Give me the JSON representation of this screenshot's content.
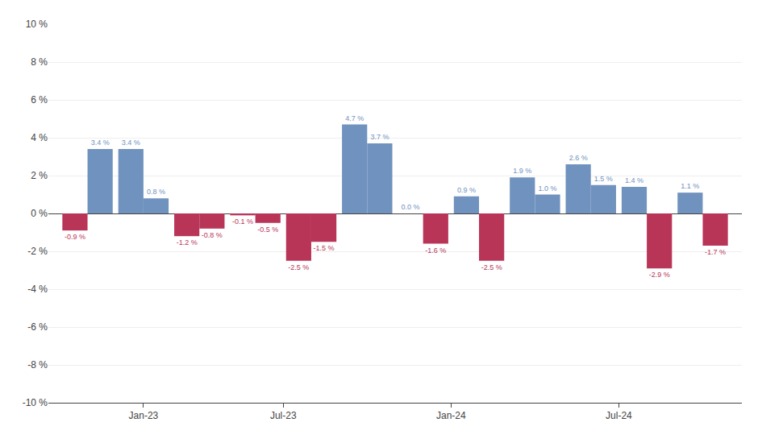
{
  "chart_data": {
    "type": "bar",
    "x": [
      0,
      1,
      2,
      3,
      4,
      5,
      6,
      7,
      8,
      9,
      10,
      11
    ],
    "xlim": [
      -0.7,
      11.7
    ],
    "xticks": [
      {
        "value": 1.0,
        "label": "Jan-23"
      },
      {
        "value": 3.5,
        "label": "Jul-23"
      },
      {
        "value": 6.5,
        "label": "Jan-24"
      },
      {
        "value": 9.5,
        "label": "Jul-24"
      }
    ],
    "ylim": [
      -10,
      10
    ],
    "yticks": [
      {
        "value": -10,
        "label": "-10 %"
      },
      {
        "value": -8,
        "label": "-8 %"
      },
      {
        "value": -6,
        "label": "-6 %"
      },
      {
        "value": -4,
        "label": "-4 %"
      },
      {
        "value": -2,
        "label": "-2 %"
      },
      {
        "value": 0,
        "label": "0 %"
      },
      {
        "value": 2,
        "label": "2 %"
      },
      {
        "value": 4,
        "label": "4 %"
      },
      {
        "value": 6,
        "label": "6 %"
      },
      {
        "value": 8,
        "label": "8 %"
      },
      {
        "value": 10,
        "label": "10 %"
      }
    ],
    "grid": true,
    "data_labels": true,
    "series": [
      {
        "values": [
          -0.9,
          3.4,
          -1.2,
          -0.1,
          -2.5,
          4.7,
          0.0,
          0.9,
          1.9,
          2.6,
          1.4,
          1.1
        ],
        "value_labels": [
          "-0.9 %",
          "3.4 %",
          "-1.2 %",
          "-0.1 %",
          "-2.5 %",
          "4.7 %",
          "0.0 %",
          "0.9 %",
          "1.9 %",
          "2.6 %",
          "1.4 %",
          "1.1 %"
        ],
        "colors": [
          "#B83558",
          "#7092BE",
          "#B83558",
          "#B83558",
          "#B83558",
          "#7092BE",
          "#7092BE",
          "#7092BE",
          "#7092BE",
          "#7092BE",
          "#7092BE",
          "#7092BE"
        ]
      },
      {
        "values": [
          3.4,
          0.8,
          -0.8,
          -0.5,
          -1.5,
          3.7,
          -1.6,
          -2.5,
          1.0,
          1.5,
          -2.9,
          -1.7
        ],
        "value_labels": [
          "3.4 %",
          "0.8 %",
          "-0.8 %",
          "-0.5 %",
          "-1.5 %",
          "3.7 %",
          "-1.6 %",
          "-2.5 %",
          "1.0 %",
          "1.5 %",
          "-2.9 %",
          "-1.7 %"
        ],
        "colors": [
          "#7092BE",
          "#7092BE",
          "#B83558",
          "#B83558",
          "#B83558",
          "#7092BE",
          "#B83558",
          "#B83558",
          "#7092BE",
          "#7092BE",
          "#B83558",
          "#B83558"
        ]
      }
    ]
  }
}
